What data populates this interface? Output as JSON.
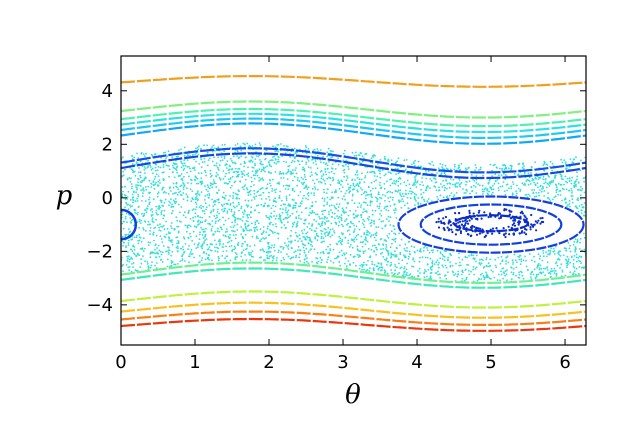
{
  "chart_data": {
    "type": "scatter",
    "title": "",
    "xlabel": "θ",
    "ylabel": "p",
    "xlim": [
      0,
      6.2832
    ],
    "ylim": [
      -5.5,
      5.3
    ],
    "x_ticks": [
      0,
      1,
      2,
      3,
      4,
      5,
      6
    ],
    "y_ticks": [
      -4,
      -2,
      0,
      2,
      4
    ],
    "x_tick_labels": [
      "0",
      "1",
      "2",
      "3",
      "4",
      "5",
      "6"
    ],
    "y_tick_labels": [
      "−4",
      "−2",
      "0",
      "2",
      "4"
    ],
    "grid": false,
    "legend": "none",
    "model": "p(θ) = c − A·cos(θ − 4.9)",
    "rotational_orbits": [
      {
        "c": 4.35,
        "A": 0.2,
        "color": "#f0a020"
      },
      {
        "c": 3.3,
        "A": 0.3,
        "color": "#80f080"
      },
      {
        "c": 3.0,
        "A": 0.32,
        "color": "#50f0b0"
      },
      {
        "c": 2.8,
        "A": 0.34,
        "color": "#30e0e0"
      },
      {
        "c": 2.6,
        "A": 0.36,
        "color": "#20c8f0"
      },
      {
        "c": 2.4,
        "A": 0.38,
        "color": "#10a8f8"
      },
      {
        "c": 1.4,
        "A": 0.45,
        "color": "#1550e8"
      },
      {
        "c": 1.2,
        "A": 0.46,
        "color": "#1448e0"
      },
      {
        "c": -2.8,
        "A": 0.38,
        "color": "#70f090"
      },
      {
        "c": -3.0,
        "A": 0.36,
        "color": "#40e8b8"
      },
      {
        "c": -3.8,
        "A": 0.3,
        "color": "#c0f040"
      },
      {
        "c": -4.2,
        "A": 0.28,
        "color": "#f8c020"
      },
      {
        "c": -4.5,
        "A": 0.25,
        "color": "#f88018"
      },
      {
        "c": -4.75,
        "A": 0.22,
        "color": "#e83810"
      }
    ],
    "island_orbits": [
      {
        "cx": 5.0,
        "cy": -1.0,
        "rx": 1.25,
        "ry": 1.05,
        "color": "#1440e0"
      },
      {
        "cx": 5.0,
        "cy": -1.0,
        "rx": 0.95,
        "ry": 0.75,
        "color": "#1040e0"
      },
      {
        "cx": 5.0,
        "cy": -0.95,
        "rx": 0.5,
        "ry": 0.3,
        "color": "#0a2cc8"
      }
    ],
    "island_scatter": {
      "cx": 5.0,
      "cy": -0.95,
      "rx_min": 0.3,
      "rx_max": 0.75,
      "ry_min": 0.18,
      "ry_max": 0.55,
      "count": 200,
      "color": "#0a2cc8"
    },
    "chaotic_sea": {
      "p_center": -0.55,
      "half_width": 2.2,
      "amplitude": 0.4,
      "count": 4500,
      "color": "#30e0d8"
    },
    "left_island": {
      "cx": 0.0,
      "cy": -1.0,
      "rx": 0.2,
      "ry": 0.55,
      "color": "#1040e0"
    }
  }
}
